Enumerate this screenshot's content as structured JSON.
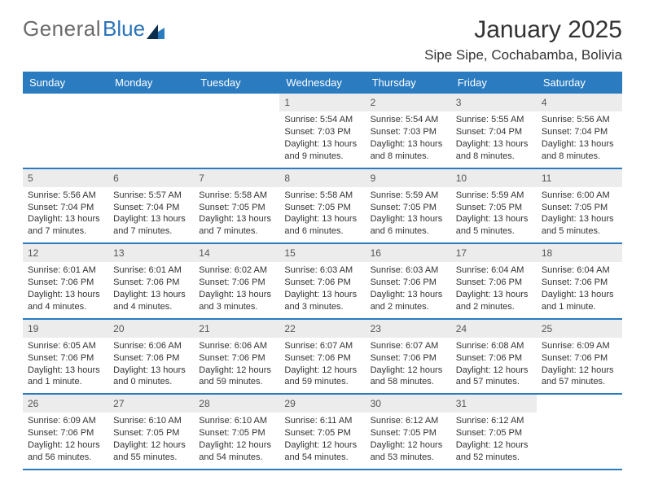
{
  "colors": {
    "header_bg": "#2a7bc0",
    "header_text": "#ffffff",
    "daynum_bg": "#ececec",
    "row_border": "#2a7bc0",
    "logo_gray": "#6b6b6b",
    "logo_blue": "#2a73b8",
    "logo_tri_dark": "#0b2e4e",
    "logo_tri_mid": "#2a7bc0",
    "text": "#333333",
    "page_bg": "#ffffff"
  },
  "typography": {
    "month_title_size": 30,
    "location_size": 17,
    "dow_size": 13,
    "daynum_size": 12,
    "body_size": 11,
    "font_family": "Arial"
  },
  "logo": {
    "part1": "General",
    "part2": "Blue"
  },
  "title": "January 2025",
  "location": "Sipe Sipe, Cochabamba, Bolivia",
  "days_of_week": [
    "Sunday",
    "Monday",
    "Tuesday",
    "Wednesday",
    "Thursday",
    "Friday",
    "Saturday"
  ],
  "weeks": [
    [
      {
        "empty": true
      },
      {
        "empty": true
      },
      {
        "empty": true
      },
      {
        "num": "1",
        "sunrise": "Sunrise: 5:54 AM",
        "sunset": "Sunset: 7:03 PM",
        "daylight": "Daylight: 13 hours and 9 minutes."
      },
      {
        "num": "2",
        "sunrise": "Sunrise: 5:54 AM",
        "sunset": "Sunset: 7:03 PM",
        "daylight": "Daylight: 13 hours and 8 minutes."
      },
      {
        "num": "3",
        "sunrise": "Sunrise: 5:55 AM",
        "sunset": "Sunset: 7:04 PM",
        "daylight": "Daylight: 13 hours and 8 minutes."
      },
      {
        "num": "4",
        "sunrise": "Sunrise: 5:56 AM",
        "sunset": "Sunset: 7:04 PM",
        "daylight": "Daylight: 13 hours and 8 minutes."
      }
    ],
    [
      {
        "num": "5",
        "sunrise": "Sunrise: 5:56 AM",
        "sunset": "Sunset: 7:04 PM",
        "daylight": "Daylight: 13 hours and 7 minutes."
      },
      {
        "num": "6",
        "sunrise": "Sunrise: 5:57 AM",
        "sunset": "Sunset: 7:04 PM",
        "daylight": "Daylight: 13 hours and 7 minutes."
      },
      {
        "num": "7",
        "sunrise": "Sunrise: 5:58 AM",
        "sunset": "Sunset: 7:05 PM",
        "daylight": "Daylight: 13 hours and 7 minutes."
      },
      {
        "num": "8",
        "sunrise": "Sunrise: 5:58 AM",
        "sunset": "Sunset: 7:05 PM",
        "daylight": "Daylight: 13 hours and 6 minutes."
      },
      {
        "num": "9",
        "sunrise": "Sunrise: 5:59 AM",
        "sunset": "Sunset: 7:05 PM",
        "daylight": "Daylight: 13 hours and 6 minutes."
      },
      {
        "num": "10",
        "sunrise": "Sunrise: 5:59 AM",
        "sunset": "Sunset: 7:05 PM",
        "daylight": "Daylight: 13 hours and 5 minutes."
      },
      {
        "num": "11",
        "sunrise": "Sunrise: 6:00 AM",
        "sunset": "Sunset: 7:05 PM",
        "daylight": "Daylight: 13 hours and 5 minutes."
      }
    ],
    [
      {
        "num": "12",
        "sunrise": "Sunrise: 6:01 AM",
        "sunset": "Sunset: 7:06 PM",
        "daylight": "Daylight: 13 hours and 4 minutes."
      },
      {
        "num": "13",
        "sunrise": "Sunrise: 6:01 AM",
        "sunset": "Sunset: 7:06 PM",
        "daylight": "Daylight: 13 hours and 4 minutes."
      },
      {
        "num": "14",
        "sunrise": "Sunrise: 6:02 AM",
        "sunset": "Sunset: 7:06 PM",
        "daylight": "Daylight: 13 hours and 3 minutes."
      },
      {
        "num": "15",
        "sunrise": "Sunrise: 6:03 AM",
        "sunset": "Sunset: 7:06 PM",
        "daylight": "Daylight: 13 hours and 3 minutes."
      },
      {
        "num": "16",
        "sunrise": "Sunrise: 6:03 AM",
        "sunset": "Sunset: 7:06 PM",
        "daylight": "Daylight: 13 hours and 2 minutes."
      },
      {
        "num": "17",
        "sunrise": "Sunrise: 6:04 AM",
        "sunset": "Sunset: 7:06 PM",
        "daylight": "Daylight: 13 hours and 2 minutes."
      },
      {
        "num": "18",
        "sunrise": "Sunrise: 6:04 AM",
        "sunset": "Sunset: 7:06 PM",
        "daylight": "Daylight: 13 hours and 1 minute."
      }
    ],
    [
      {
        "num": "19",
        "sunrise": "Sunrise: 6:05 AM",
        "sunset": "Sunset: 7:06 PM",
        "daylight": "Daylight: 13 hours and 1 minute."
      },
      {
        "num": "20",
        "sunrise": "Sunrise: 6:06 AM",
        "sunset": "Sunset: 7:06 PM",
        "daylight": "Daylight: 13 hours and 0 minutes."
      },
      {
        "num": "21",
        "sunrise": "Sunrise: 6:06 AM",
        "sunset": "Sunset: 7:06 PM",
        "daylight": "Daylight: 12 hours and 59 minutes."
      },
      {
        "num": "22",
        "sunrise": "Sunrise: 6:07 AM",
        "sunset": "Sunset: 7:06 PM",
        "daylight": "Daylight: 12 hours and 59 minutes."
      },
      {
        "num": "23",
        "sunrise": "Sunrise: 6:07 AM",
        "sunset": "Sunset: 7:06 PM",
        "daylight": "Daylight: 12 hours and 58 minutes."
      },
      {
        "num": "24",
        "sunrise": "Sunrise: 6:08 AM",
        "sunset": "Sunset: 7:06 PM",
        "daylight": "Daylight: 12 hours and 57 minutes."
      },
      {
        "num": "25",
        "sunrise": "Sunrise: 6:09 AM",
        "sunset": "Sunset: 7:06 PM",
        "daylight": "Daylight: 12 hours and 57 minutes."
      }
    ],
    [
      {
        "num": "26",
        "sunrise": "Sunrise: 6:09 AM",
        "sunset": "Sunset: 7:06 PM",
        "daylight": "Daylight: 12 hours and 56 minutes."
      },
      {
        "num": "27",
        "sunrise": "Sunrise: 6:10 AM",
        "sunset": "Sunset: 7:05 PM",
        "daylight": "Daylight: 12 hours and 55 minutes."
      },
      {
        "num": "28",
        "sunrise": "Sunrise: 6:10 AM",
        "sunset": "Sunset: 7:05 PM",
        "daylight": "Daylight: 12 hours and 54 minutes."
      },
      {
        "num": "29",
        "sunrise": "Sunrise: 6:11 AM",
        "sunset": "Sunset: 7:05 PM",
        "daylight": "Daylight: 12 hours and 54 minutes."
      },
      {
        "num": "30",
        "sunrise": "Sunrise: 6:12 AM",
        "sunset": "Sunset: 7:05 PM",
        "daylight": "Daylight: 12 hours and 53 minutes."
      },
      {
        "num": "31",
        "sunrise": "Sunrise: 6:12 AM",
        "sunset": "Sunset: 7:05 PM",
        "daylight": "Daylight: 12 hours and 52 minutes."
      },
      {
        "empty": true
      }
    ]
  ]
}
